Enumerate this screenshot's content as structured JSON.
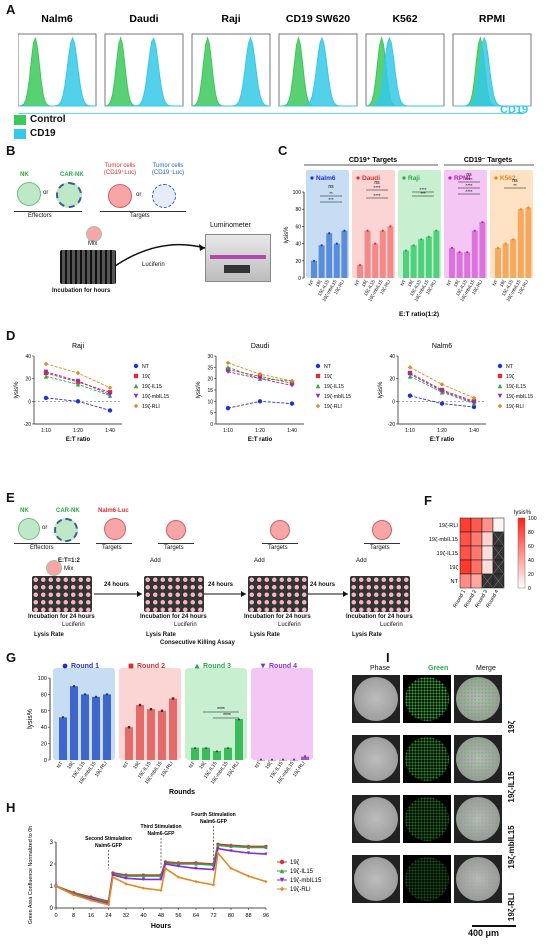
{
  "panels": {
    "A": {
      "label": "A",
      "titles": [
        "Nalm6",
        "Daudi",
        "Raji",
        "CD19 SW620",
        "K562",
        "RPMI"
      ],
      "axis_label": "CD19",
      "legend": [
        {
          "name": "Control",
          "color": "#3cc85a"
        },
        {
          "name": "CD19",
          "color": "#35c9e6"
        }
      ]
    },
    "B": {
      "label": "B",
      "nk": "NK",
      "or1": "or",
      "carnk": "CAR-NK",
      "effectors": "Effectors",
      "tumor1": "Tumor cells (CD19⁺Luc)",
      "or2": "or",
      "tumor2": "Tumor cells (CD19⁻Luc)",
      "targets": "Targets",
      "mix": "Mix",
      "incubation": "Incubation for hours",
      "luciferin": "Luciferin",
      "luminometer": "Luminometer"
    },
    "C": {
      "label": "C",
      "cd19pos": "CD19⁺ Targets",
      "cd19neg": "CD19⁻ Targets",
      "groups": [
        "Nalm6",
        "Daudi",
        "Raji",
        "RPMI",
        "K562"
      ],
      "ylabel": "lysis%",
      "xlabel": "E:T ratio(1:2)",
      "ns": "ns",
      "stars": [
        "**",
        "***",
        "****",
        "****",
        "****",
        "***",
        "****",
        "****",
        "****",
        "**"
      ]
    },
    "D": {
      "label": "D",
      "xlabel": "E:T ratio",
      "ylabel": "lysis%",
      "legend": [
        "NT",
        "19ζ",
        "19ζ-IL15",
        "19ζ-mbIL15",
        "19ζ-RLI"
      ]
    },
    "E": {
      "label": "E",
      "nk": "NK",
      "carnk": "CAR-NK",
      "or": "or",
      "nalm": "Nalm6-Luc",
      "effectors": "Effectors",
      "targets": "Targets",
      "ratio": "E:T=1:2",
      "mix": "Mix",
      "add": "Add",
      "h24": "24 hours",
      "incubation": "Incubation for 24 hours",
      "luciferin": "Luciferin",
      "lysis": "Lysis Rate",
      "caption": "Consecutive Killing Assay"
    },
    "F": {
      "label": "F",
      "rows": [
        "19ζ-RLI",
        "19ζ-mbIL15",
        "19ζ-IL15",
        "19ζ",
        "NT"
      ],
      "cols": [
        "Round 1",
        "Round 2",
        "Round 3",
        "Round 4"
      ],
      "scale_title": "lysis%",
      "scale_ticks": [
        "100",
        "80",
        "60",
        "40",
        "20",
        "0"
      ]
    },
    "G": {
      "label": "G",
      "rounds": [
        "Round 1",
        "Round 2",
        "Round 3",
        "Round 4"
      ],
      "ylabel": "lysis%",
      "xlabel": "Rounds",
      "yticks": [
        "100",
        "80",
        "60",
        "40",
        "20",
        "0"
      ],
      "stars": "****"
    },
    "H": {
      "label": "H",
      "ylabel": "Green Area Confluence Normalized to 0h",
      "xlabel": "Hours",
      "stim2": "Second Stimulation Nalm6-GFP",
      "stim3": "Third Stimulation Nalm6-GFP",
      "stim4": "Fourth Stimulation Nalm6-GFP",
      "legend": [
        "19ζ",
        "19ζ-IL15",
        "19ζ-mbIL15",
        "19ζ-RLI"
      ],
      "xticks": [
        "0",
        "8",
        "16",
        "24",
        "32",
        "40",
        "48",
        "56",
        "64",
        "72",
        "80",
        "88",
        "96"
      ],
      "yticks": [
        "3",
        "2",
        "1",
        "0"
      ]
    },
    "I": {
      "label": "I",
      "cols": [
        "Phase",
        "Green",
        "Merge"
      ],
      "rows": [
        "19ζ",
        "19ζ-IL15",
        "19ζ-mbIL15",
        "19ζ-RLI"
      ],
      "scale": "400 μm"
    }
  },
  "colors": {
    "nt": "#2233cc",
    "z19": "#d93030",
    "il15": "#2aa84a",
    "mbil15": "#8a2bd6",
    "rli": "#e08a20",
    "blue_bg": "#c7ddf4",
    "pink_bg": "#fbd4d4",
    "green_bg": "#c8f0d0",
    "purple_bg": "#f3c6f3",
    "orange_bg": "#fde2c4"
  },
  "chart_data": [
    {
      "type": "bar",
      "panel": "C",
      "categories": [
        "NT",
        "19ζ",
        "19ζ-IL15",
        "19ζ-mbIL15",
        "19ζ-RLI"
      ],
      "series": [
        {
          "name": "Nalm6",
          "values": [
            20,
            38,
            52,
            40,
            55
          ]
        },
        {
          "name": "Daudi",
          "values": [
            15,
            55,
            40,
            55,
            60
          ]
        },
        {
          "name": "Raji",
          "values": [
            32,
            38,
            45,
            48,
            55
          ]
        },
        {
          "name": "RPMI",
          "values": [
            35,
            30,
            30,
            55,
            65
          ]
        },
        {
          "name": "K562",
          "values": [
            35,
            40,
            45,
            80,
            82
          ]
        }
      ],
      "ylabel": "lysis%",
      "xlabel": "E:T ratio(1:2)",
      "ylim": [
        0,
        100
      ]
    },
    {
      "type": "line",
      "panel": "D",
      "charts": [
        {
          "title": "Raji",
          "x": [
            "1:10",
            "1:20",
            "1:40"
          ],
          "ylim": [
            -20,
            40
          ],
          "yticks": [
            "40",
            "20",
            "0",
            "-20"
          ],
          "series": [
            {
              "name": "NT",
              "values": [
                3,
                0,
                -8
              ]
            },
            {
              "name": "19ζ",
              "values": [
                25,
                17,
                8
              ]
            },
            {
              "name": "19ζ-IL15",
              "values": [
                22,
                15,
                5
              ]
            },
            {
              "name": "19ζ-mbIL15",
              "values": [
                26,
                18,
                6
              ]
            },
            {
              "name": "19ζ-RLI",
              "values": [
                33,
                25,
                12
              ]
            }
          ]
        },
        {
          "title": "Daudi",
          "x": [
            "1:10",
            "1:20",
            "1:40"
          ],
          "ylim": [
            0,
            30
          ],
          "yticks": [
            "30",
            "25",
            "20",
            "15",
            "10",
            "5",
            "0"
          ],
          "series": [
            {
              "name": "NT",
              "values": [
                7,
                10,
                9
              ]
            },
            {
              "name": "19ζ",
              "values": [
                24,
                21,
                18
              ]
            },
            {
              "name": "19ζ-IL15",
              "values": [
                25,
                20,
                19
              ]
            },
            {
              "name": "19ζ-mbIL15",
              "values": [
                23,
                20,
                17
              ]
            },
            {
              "name": "19ζ-RLI",
              "values": [
                27,
                22,
                19
              ]
            }
          ]
        },
        {
          "title": "Nalm6",
          "x": [
            "1:10",
            "1:20",
            "1:40"
          ],
          "ylim": [
            -20,
            40
          ],
          "yticks": [
            "40",
            "20",
            "0",
            "-20"
          ],
          "series": [
            {
              "name": "NT",
              "values": [
                5,
                -2,
                -5
              ]
            },
            {
              "name": "19ζ",
              "values": [
                25,
                10,
                0
              ]
            },
            {
              "name": "19ζ-IL15",
              "values": [
                22,
                8,
                -2
              ]
            },
            {
              "name": "19ζ-mbIL15",
              "values": [
                24,
                9,
                -1
              ]
            },
            {
              "name": "19ζ-RLI",
              "values": [
                30,
                15,
                3
              ]
            }
          ]
        }
      ],
      "xlabel": "E:T ratio",
      "ylabel": "lysis%"
    },
    {
      "type": "heatmap",
      "panel": "F",
      "rows": [
        "19ζ-RLI",
        "19ζ-mbIL15",
        "19ζ-IL15",
        "19ζ",
        "NT"
      ],
      "cols": [
        "Round 1",
        "Round 2",
        "Round 3",
        "Round 4"
      ],
      "values": [
        [
          88,
          75,
          50,
          5
        ],
        [
          78,
          60,
          20,
          null
        ],
        [
          78,
          62,
          15,
          null
        ],
        [
          90,
          65,
          15,
          null
        ],
        [
          52,
          40,
          null,
          null
        ]
      ]
    },
    {
      "type": "bar",
      "panel": "G",
      "categories": [
        "NT",
        "19ζ",
        "19ζ-IL15",
        "19ζ-mbIL15",
        "19ζ-RLI"
      ],
      "series": [
        {
          "name": "Round 1",
          "values": [
            52,
            90,
            80,
            77,
            80
          ]
        },
        {
          "name": "Round 2",
          "values": [
            40,
            67,
            62,
            60,
            75
          ]
        },
        {
          "name": "Round 3",
          "values": [
            15,
            15,
            11,
            15,
            50
          ]
        },
        {
          "name": "Round 4",
          "values": [
            0,
            0,
            0,
            0,
            4
          ]
        }
      ],
      "ylabel": "lysis%",
      "xlabel": "Rounds",
      "ylim": [
        0,
        100
      ]
    },
    {
      "type": "line",
      "panel": "H",
      "x": [
        0,
        8,
        16,
        24,
        26,
        32,
        40,
        48,
        50,
        56,
        64,
        72,
        74,
        80,
        88,
        96
      ],
      "series": [
        {
          "name": "19ζ",
          "values": [
            1.0,
            0.7,
            0.5,
            0.3,
            1.6,
            1.5,
            1.5,
            1.5,
            2.1,
            2.05,
            2.05,
            2.0,
            2.9,
            2.85,
            2.8,
            2.8
          ]
        },
        {
          "name": "19ζ-IL15",
          "values": [
            1.0,
            0.65,
            0.45,
            0.25,
            1.55,
            1.45,
            1.45,
            1.45,
            2.05,
            2.0,
            2.0,
            1.95,
            2.85,
            2.8,
            2.75,
            2.75
          ]
        },
        {
          "name": "19ζ-mbIL15",
          "values": [
            1.0,
            0.6,
            0.4,
            0.2,
            1.5,
            1.35,
            1.3,
            1.3,
            2.0,
            1.9,
            1.8,
            1.75,
            2.7,
            2.6,
            2.5,
            2.45
          ]
        },
        {
          "name": "19ζ-RLI",
          "values": [
            1.0,
            0.6,
            0.35,
            0.15,
            1.4,
            1.1,
            0.9,
            0.8,
            1.8,
            1.4,
            1.2,
            1.05,
            2.5,
            1.8,
            1.45,
            1.2
          ]
        }
      ],
      "xlabel": "Hours",
      "ylabel": "Green Area Confluence Normalized to 0h",
      "ylim": [
        0,
        3
      ]
    }
  ]
}
